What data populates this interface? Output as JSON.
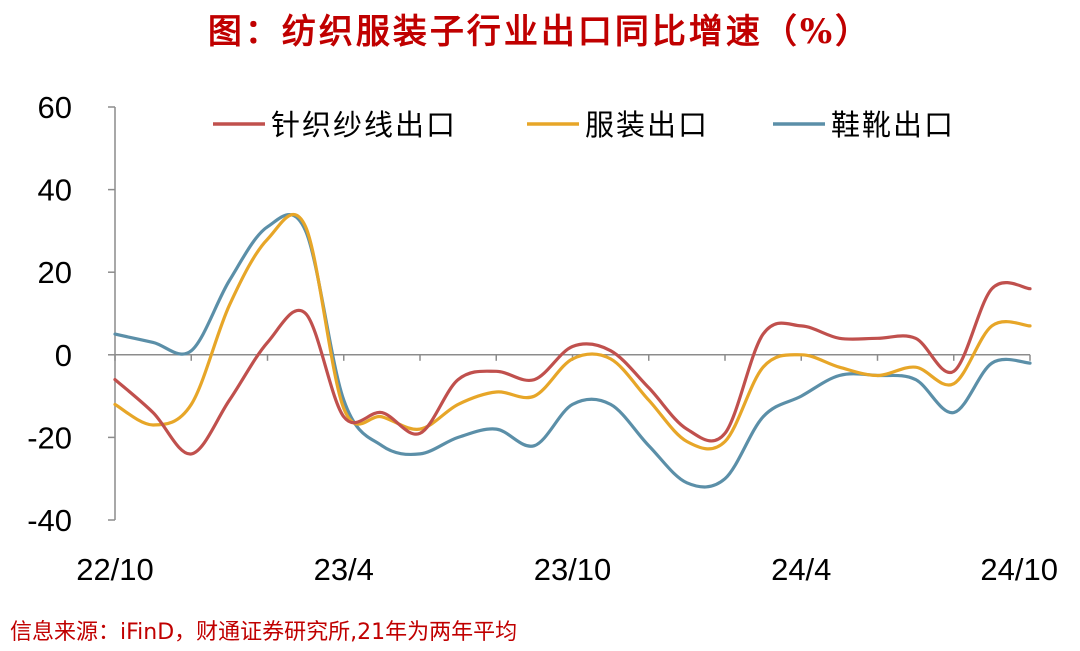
{
  "title": "图：纺织服装子行业出口同比增速（%）",
  "source": "信息来源：iFinD，财通证券研究所,21年为两年平均",
  "chart_data": {
    "type": "line",
    "title": "图：纺织服装子行业出口同比增速（%）",
    "xlabel": "",
    "ylabel": "",
    "x": [
      "22/10",
      "22/11",
      "22/12",
      "23/1",
      "23/2",
      "23/3",
      "23/4",
      "23/5",
      "23/6",
      "23/7",
      "23/8",
      "23/9",
      "23/10",
      "23/11",
      "23/12",
      "24/1",
      "24/2",
      "24/3",
      "24/4",
      "24/5",
      "24/6",
      "24/7",
      "24/8",
      "24/9",
      "24/10"
    ],
    "x_tick_labels": [
      "22/10",
      "23/4",
      "23/10",
      "24/4",
      "24/10"
    ],
    "x_tick_indices": [
      0,
      6,
      12,
      18,
      24
    ],
    "ylim": [
      -40,
      60
    ],
    "y_ticks": [
      60,
      40,
      20,
      0,
      -20,
      -40
    ],
    "legend_position": "top",
    "grid": false,
    "series": [
      {
        "name": "针织纱线出口",
        "color": "#c0504d",
        "values": [
          -6,
          -14,
          -24,
          -11,
          3,
          10,
          -15,
          -14,
          -19,
          -6,
          -4,
          -6,
          2,
          1,
          -8,
          -18,
          -19,
          5,
          7,
          4,
          4,
          4,
          -4,
          16,
          16
        ]
      },
      {
        "name": "服装出口",
        "color": "#e7a628",
        "values": [
          -12,
          -17,
          -12,
          12,
          28,
          31,
          -13,
          -15,
          -18,
          -12,
          -9,
          -10,
          -1,
          -1,
          -11,
          -21,
          -21,
          -3,
          0,
          -3,
          -5,
          -3,
          -7,
          7,
          7
        ]
      },
      {
        "name": "鞋靴出口",
        "color": "#5b8fa8",
        "values": [
          5,
          3,
          1,
          18,
          31,
          30,
          -11,
          -22,
          -24,
          -20,
          -18,
          -22,
          -12,
          -12,
          -22,
          -31,
          -30,
          -15,
          -10,
          -5,
          -5,
          -6,
          -14,
          -2,
          -2
        ]
      }
    ]
  }
}
